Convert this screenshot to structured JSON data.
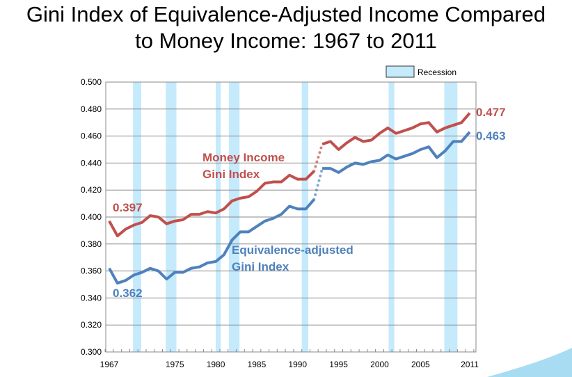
{
  "chart_data": {
    "type": "line",
    "title_line1": "Gini Index of Equivalence-Adjusted Income Compared",
    "title_line2": "to Money Income:  1967 to 2011",
    "x": [
      1967,
      1968,
      1969,
      1970,
      1971,
      1972,
      1973,
      1974,
      1975,
      1976,
      1977,
      1978,
      1979,
      1980,
      1981,
      1982,
      1983,
      1984,
      1985,
      1986,
      1987,
      1988,
      1989,
      1990,
      1991,
      1992,
      1993,
      1994,
      1995,
      1996,
      1997,
      1998,
      1999,
      2000,
      2001,
      2002,
      2003,
      2004,
      2005,
      2006,
      2007,
      2008,
      2009,
      2010,
      2011
    ],
    "x_tick_labels": [
      "1967",
      "1975",
      "1980",
      "1985",
      "1990",
      "1995",
      "2000",
      "2005",
      "2011"
    ],
    "y_tick_labels": [
      "0.300",
      "0.320",
      "0.340",
      "0.360",
      "0.380",
      "0.400",
      "0.420",
      "0.440",
      "0.460",
      "0.480",
      "0.500"
    ],
    "ylim": [
      0.3,
      0.5
    ],
    "grid": true,
    "legend": {
      "label": "Recession",
      "placement": "top-right"
    },
    "recessions": [
      [
        1969.9,
        1970.9
      ],
      [
        1973.9,
        1975.2
      ],
      [
        1980.0,
        1980.6
      ],
      [
        1981.6,
        1982.9
      ],
      [
        1990.5,
        1991.3
      ],
      [
        2001.1,
        2001.8
      ],
      [
        2007.9,
        2009.5
      ]
    ],
    "break_between": [
      1992,
      1993
    ],
    "series": [
      {
        "name": "Money Income Gini Index",
        "label_line1": "Money Income",
        "label_line2": "Gini Index",
        "color": "#c0504d",
        "start_label": "0.397",
        "end_label": "0.477",
        "values": [
          0.397,
          0.386,
          0.391,
          0.394,
          0.396,
          0.401,
          0.4,
          0.395,
          0.397,
          0.398,
          0.402,
          0.402,
          0.404,
          0.403,
          0.406,
          0.412,
          0.414,
          0.415,
          0.419,
          0.425,
          0.426,
          0.426,
          0.431,
          0.428,
          0.428,
          0.434,
          0.454,
          0.456,
          0.45,
          0.455,
          0.459,
          0.456,
          0.457,
          0.462,
          0.466,
          0.462,
          0.464,
          0.466,
          0.469,
          0.47,
          0.463,
          0.466,
          0.468,
          0.47,
          0.477
        ]
      },
      {
        "name": "Equivalence-adjusted Gini Index",
        "label_line1": "Equivalence-adjusted",
        "label_line2": "Gini Index",
        "color": "#4f81bd",
        "start_label": "0.362",
        "end_label": "0.463",
        "values": [
          0.362,
          0.351,
          0.353,
          0.357,
          0.359,
          0.362,
          0.36,
          0.354,
          0.359,
          0.359,
          0.362,
          0.363,
          0.366,
          0.367,
          0.372,
          0.383,
          0.389,
          0.389,
          0.393,
          0.397,
          0.399,
          0.402,
          0.408,
          0.406,
          0.406,
          0.413,
          0.436,
          0.436,
          0.433,
          0.437,
          0.44,
          0.439,
          0.441,
          0.442,
          0.446,
          0.443,
          0.445,
          0.447,
          0.45,
          0.452,
          0.444,
          0.449,
          0.456,
          0.456,
          0.463
        ]
      }
    ]
  }
}
